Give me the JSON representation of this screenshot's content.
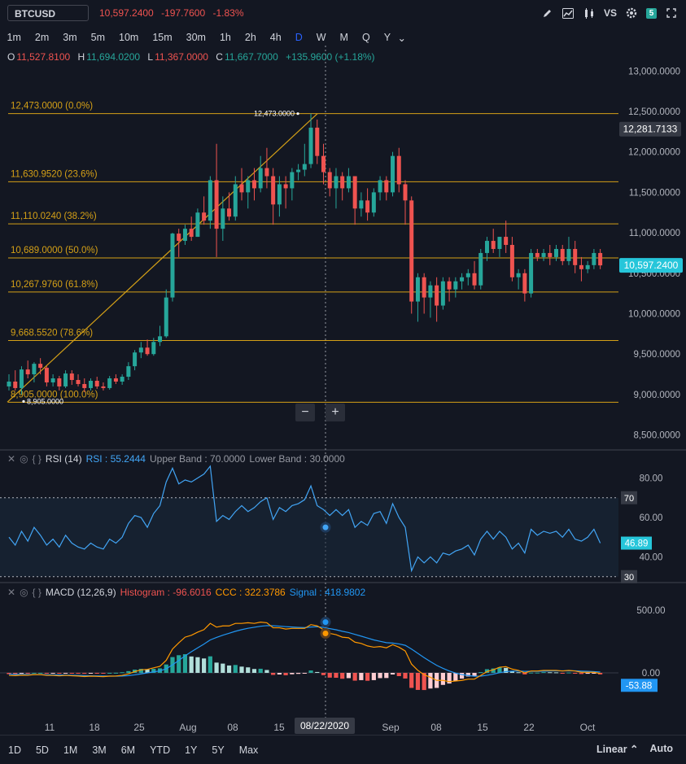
{
  "header": {
    "symbol": "BTCUSD",
    "last": "10,597.2400",
    "change": "-197.7600",
    "change_pct": "-1.83%",
    "badge": "5",
    "vs_label": "VS"
  },
  "intervals": [
    "1m",
    "2m",
    "3m",
    "5m",
    "10m",
    "15m",
    "30m",
    "1h",
    "2h",
    "4h",
    "D",
    "W",
    "M",
    "Q",
    "Y"
  ],
  "active_interval": "D",
  "ohlc": {
    "o_label": "O",
    "o": "11,527.8100",
    "h_label": "H",
    "h": "11,694.0200",
    "l_label": "L",
    "l": "11,367.0000",
    "c_label": "C",
    "c": "11,667.7000",
    "chg": "+135.9600 (+1.18%)"
  },
  "price_axis": {
    "ticks": [
      "13,000.0000",
      "12,500.0000",
      "12,000.0000",
      "11,500.0000",
      "11,000.0000",
      "10,500.0000",
      "10,000.0000",
      "9,500.0000",
      "9,000.0000",
      "8,500.0000"
    ],
    "crosshair_price": "12,281.7133",
    "last_price": "10,597.2400"
  },
  "fib": {
    "levels": [
      {
        "label": "12,473.0000 (0.0%)",
        "price": 12473
      },
      {
        "label": "11,630.9520 (23.6%)",
        "price": 11630.952
      },
      {
        "label": "11,110.0240 (38.2%)",
        "price": 11110.024
      },
      {
        "label": "10,689.0000 (50.0%)",
        "price": 10689
      },
      {
        "label": "10,267.9760 (61.8%)",
        "price": 10267.976
      },
      {
        "label": "9,668.5520 (78.6%)",
        "price": 9668.552
      },
      {
        "label": "8,905.0000 (100.0%)",
        "price": 8905
      }
    ],
    "high_label": "12,473.0000",
    "low_label": "8,905.0000",
    "color": "#d4a017"
  },
  "zoom": {
    "minus": "−",
    "plus": "+"
  },
  "rsi": {
    "name": "RSI (14)",
    "value_label": "RSI : 55.2444",
    "upper_label": "Upper Band : 70.0000",
    "lower_label": "Lower Band : 30.0000",
    "ticks": [
      "80.00",
      "60.00",
      "40.00"
    ],
    "upper_tag": "70",
    "lower_tag": "30",
    "last_tag": "46.89"
  },
  "macd": {
    "name": "MACD (12,26,9)",
    "hist_label": "Histogram : -96.6016",
    "ccc_label": "CCC : 322.3786",
    "signal_label": "Signal : 418.9802",
    "ticks": [
      "500.00",
      "0.00"
    ],
    "last_tag": "-53.88"
  },
  "time_axis": {
    "ticks": [
      "11",
      "18",
      "25",
      "Aug",
      "08",
      "15",
      "Sep",
      "08",
      "15",
      "22",
      "Oct"
    ],
    "crosshair_date": "08/22/2020"
  },
  "ranges": [
    "1D",
    "5D",
    "1M",
    "3M",
    "6M",
    "YTD",
    "1Y",
    "5Y",
    "Max"
  ],
  "scale": {
    "linear": "Linear",
    "auto": "Auto"
  },
  "colors": {
    "up": "#26a69a",
    "down": "#ef5350",
    "accent": "#2962ff",
    "rsi": "#42a5f5",
    "macd": "#2196f3",
    "signal": "#ff9800"
  },
  "chart_data": {
    "type": "candlestick",
    "title": "BTCUSD",
    "ylim": [
      8500,
      13100
    ],
    "candles": [
      [
        9100,
        9250,
        9050,
        9160
      ],
      [
        9160,
        9300,
        9050,
        9080
      ],
      [
        9080,
        9350,
        9000,
        9310
      ],
      [
        9310,
        9420,
        9200,
        9250
      ],
      [
        9250,
        9400,
        9150,
        9380
      ],
      [
        9380,
        9450,
        9250,
        9330
      ],
      [
        9330,
        9350,
        9100,
        9150
      ],
      [
        9150,
        9250,
        9100,
        9200
      ],
      [
        9200,
        9230,
        9050,
        9100
      ],
      [
        9100,
        9300,
        9080,
        9260
      ],
      [
        9260,
        9300,
        9120,
        9180
      ],
      [
        9180,
        9250,
        9100,
        9130
      ],
      [
        9130,
        9200,
        9030,
        9080
      ],
      [
        9080,
        9200,
        9050,
        9170
      ],
      [
        9170,
        9220,
        9070,
        9100
      ],
      [
        9100,
        9150,
        9050,
        9080
      ],
      [
        9080,
        9230,
        9060,
        9200
      ],
      [
        9200,
        9250,
        9130,
        9160
      ],
      [
        9160,
        9250,
        9120,
        9220
      ],
      [
        9220,
        9400,
        9180,
        9350
      ],
      [
        9350,
        9550,
        9300,
        9520
      ],
      [
        9520,
        9650,
        9450,
        9580
      ],
      [
        9580,
        9680,
        9480,
        9500
      ],
      [
        9500,
        9700,
        9480,
        9650
      ],
      [
        9650,
        9850,
        9600,
        9720
      ],
      [
        9720,
        10300,
        9700,
        10200
      ],
      [
        10200,
        11000,
        10150,
        10990
      ],
      [
        10990,
        11050,
        10700,
        10900
      ],
      [
        10900,
        11100,
        10850,
        11050
      ],
      [
        11050,
        11200,
        10900,
        10950
      ],
      [
        10950,
        11300,
        10950,
        11250
      ],
      [
        11250,
        11450,
        11100,
        11150
      ],
      [
        11150,
        11700,
        11050,
        11650
      ],
      [
        11650,
        12100,
        10700,
        11050
      ],
      [
        11050,
        11450,
        10900,
        11300
      ],
      [
        11300,
        11500,
        11150,
        11200
      ],
      [
        11200,
        11700,
        11150,
        11600
      ],
      [
        11600,
        11800,
        11400,
        11500
      ],
      [
        11500,
        11700,
        11300,
        11650
      ],
      [
        11650,
        11800,
        11400,
        11550
      ],
      [
        11550,
        11950,
        11500,
        11800
      ],
      [
        11800,
        12050,
        11550,
        11700
      ],
      [
        11700,
        11800,
        11100,
        11350
      ],
      [
        11350,
        11700,
        11200,
        11600
      ],
      [
        11600,
        11700,
        11300,
        11550
      ],
      [
        11550,
        11800,
        11400,
        11750
      ],
      [
        11750,
        11850,
        11650,
        11780
      ],
      [
        11780,
        12100,
        11700,
        11850
      ],
      [
        11850,
        12473,
        11800,
        12300
      ],
      [
        12300,
        12400,
        11850,
        11950
      ],
      [
        11950,
        12100,
        11600,
        11750
      ],
      [
        11750,
        11800,
        11450,
        11550
      ],
      [
        11550,
        11800,
        11300,
        11700
      ],
      [
        11700,
        11750,
        11400,
        11550
      ],
      [
        11550,
        11800,
        11500,
        11700
      ],
      [
        11700,
        11700,
        11100,
        11300
      ],
      [
        11300,
        11500,
        11200,
        11400
      ],
      [
        11400,
        11550,
        11150,
        11250
      ],
      [
        11250,
        11550,
        11200,
        11500
      ],
      [
        11500,
        11700,
        11400,
        11650
      ],
      [
        11650,
        11700,
        11400,
        11500
      ],
      [
        11500,
        12000,
        11450,
        11950
      ],
      [
        11950,
        12050,
        11500,
        11600
      ],
      [
        11600,
        11650,
        11100,
        11400
      ],
      [
        11400,
        11450,
        10000,
        10150
      ],
      [
        10150,
        10500,
        9900,
        10450
      ],
      [
        10450,
        10500,
        10000,
        10200
      ],
      [
        10200,
        10400,
        9950,
        10350
      ],
      [
        10350,
        10450,
        9900,
        10100
      ],
      [
        10100,
        10450,
        10050,
        10400
      ],
      [
        10400,
        10450,
        10150,
        10300
      ],
      [
        10300,
        10450,
        10200,
        10400
      ],
      [
        10400,
        10500,
        10300,
        10450
      ],
      [
        10450,
        10550,
        10350,
        10500
      ],
      [
        10500,
        10650,
        10300,
        10350
      ],
      [
        10350,
        10800,
        10300,
        10750
      ],
      [
        10750,
        10950,
        10650,
        10900
      ],
      [
        10900,
        11050,
        10750,
        10800
      ],
      [
        10800,
        10950,
        10700,
        10950
      ],
      [
        10950,
        11150,
        10750,
        10850
      ],
      [
        10850,
        10950,
        10400,
        10450
      ],
      [
        10450,
        10550,
        10300,
        10500
      ],
      [
        10500,
        10550,
        10150,
        10250
      ],
      [
        10250,
        10800,
        10200,
        10750
      ],
      [
        10750,
        10800,
        10650,
        10700
      ],
      [
        10700,
        10800,
        10650,
        10750
      ],
      [
        10750,
        10850,
        10600,
        10700
      ],
      [
        10700,
        10850,
        10650,
        10800
      ],
      [
        10800,
        10850,
        10600,
        10650
      ],
      [
        10650,
        10950,
        10600,
        10800
      ],
      [
        10800,
        10900,
        10500,
        10600
      ],
      [
        10600,
        10700,
        10400,
        10550
      ],
      [
        10550,
        10650,
        10500,
        10600
      ],
      [
        10600,
        10800,
        10550,
        10750
      ],
      [
        10750,
        10800,
        10550,
        10597
      ]
    ],
    "rsi": [
      50,
      46,
      53,
      48,
      55,
      51,
      46,
      49,
      45,
      51,
      47,
      45,
      44,
      47,
      45,
      44,
      49,
      47,
      50,
      57,
      61,
      60,
      55,
      62,
      66,
      78,
      85,
      77,
      79,
      78,
      80,
      82,
      86,
      58,
      61,
      59,
      63,
      66,
      63,
      65,
      68,
      70,
      59,
      65,
      63,
      66,
      67,
      69,
      76,
      66,
      64,
      61,
      64,
      61,
      64,
      55,
      58,
      56,
      62,
      63,
      57,
      67,
      60,
      55,
      33,
      40,
      37,
      40,
      37,
      42,
      41,
      43,
      44,
      46,
      41,
      49,
      53,
      49,
      53,
      50,
      44,
      47,
      42,
      54,
      51,
      53,
      52,
      53,
      50,
      54,
      49,
      48,
      50,
      54,
      47
    ],
    "macd": [
      -20,
      -22,
      -18,
      -19,
      -14,
      -14,
      -20,
      -20,
      -24,
      -20,
      -23,
      -25,
      -29,
      -26,
      -28,
      -30,
      -26,
      -25,
      -20,
      -8,
      10,
      24,
      28,
      40,
      52,
      100,
      190,
      240,
      285,
      300,
      325,
      345,
      395,
      365,
      375,
      375,
      395,
      395,
      400,
      395,
      405,
      400,
      360,
      360,
      350,
      355,
      355,
      355,
      385,
      375,
      345,
      315,
      305,
      285,
      280,
      245,
      235,
      215,
      205,
      210,
      200,
      225,
      205,
      175,
      70,
      20,
      -15,
      -35,
      -60,
      -60,
      -70,
      -65,
      -60,
      -50,
      -50,
      -20,
      10,
      25,
      45,
      50,
      30,
      20,
      0,
      15,
      15,
      20,
      20,
      20,
      15,
      20,
      15,
      5,
      5,
      5,
      -5
    ],
    "signal": [
      -10,
      -12,
      -13,
      -14,
      -14,
      -14,
      -15,
      -16,
      -17,
      -18,
      -19,
      -20,
      -22,
      -23,
      -24,
      -25,
      -26,
      -26,
      -25,
      -22,
      -16,
      -8,
      0,
      8,
      16,
      33,
      64,
      99,
      136,
      169,
      200,
      230,
      263,
      283,
      301,
      316,
      332,
      345,
      356,
      364,
      372,
      377,
      376,
      373,
      369,
      366,
      363,
      361,
      366,
      368,
      363,
      353,
      344,
      332,
      322,
      307,
      293,
      278,
      263,
      252,
      241,
      238,
      231,
      220,
      190,
      156,
      122,
      90,
      60,
      36,
      15,
      -1,
      -14,
      -21,
      -27,
      -26,
      -19,
      -10,
      1,
      10,
      14,
      15,
      12,
      13,
      13,
      14,
      15,
      16,
      16,
      17,
      16,
      14,
      12,
      10,
      7
    ],
    "time_ticks": [
      "11",
      "18",
      "25",
      "Aug",
      "08",
      "15",
      "Sep",
      "08",
      "15",
      "22",
      "Oct"
    ]
  }
}
